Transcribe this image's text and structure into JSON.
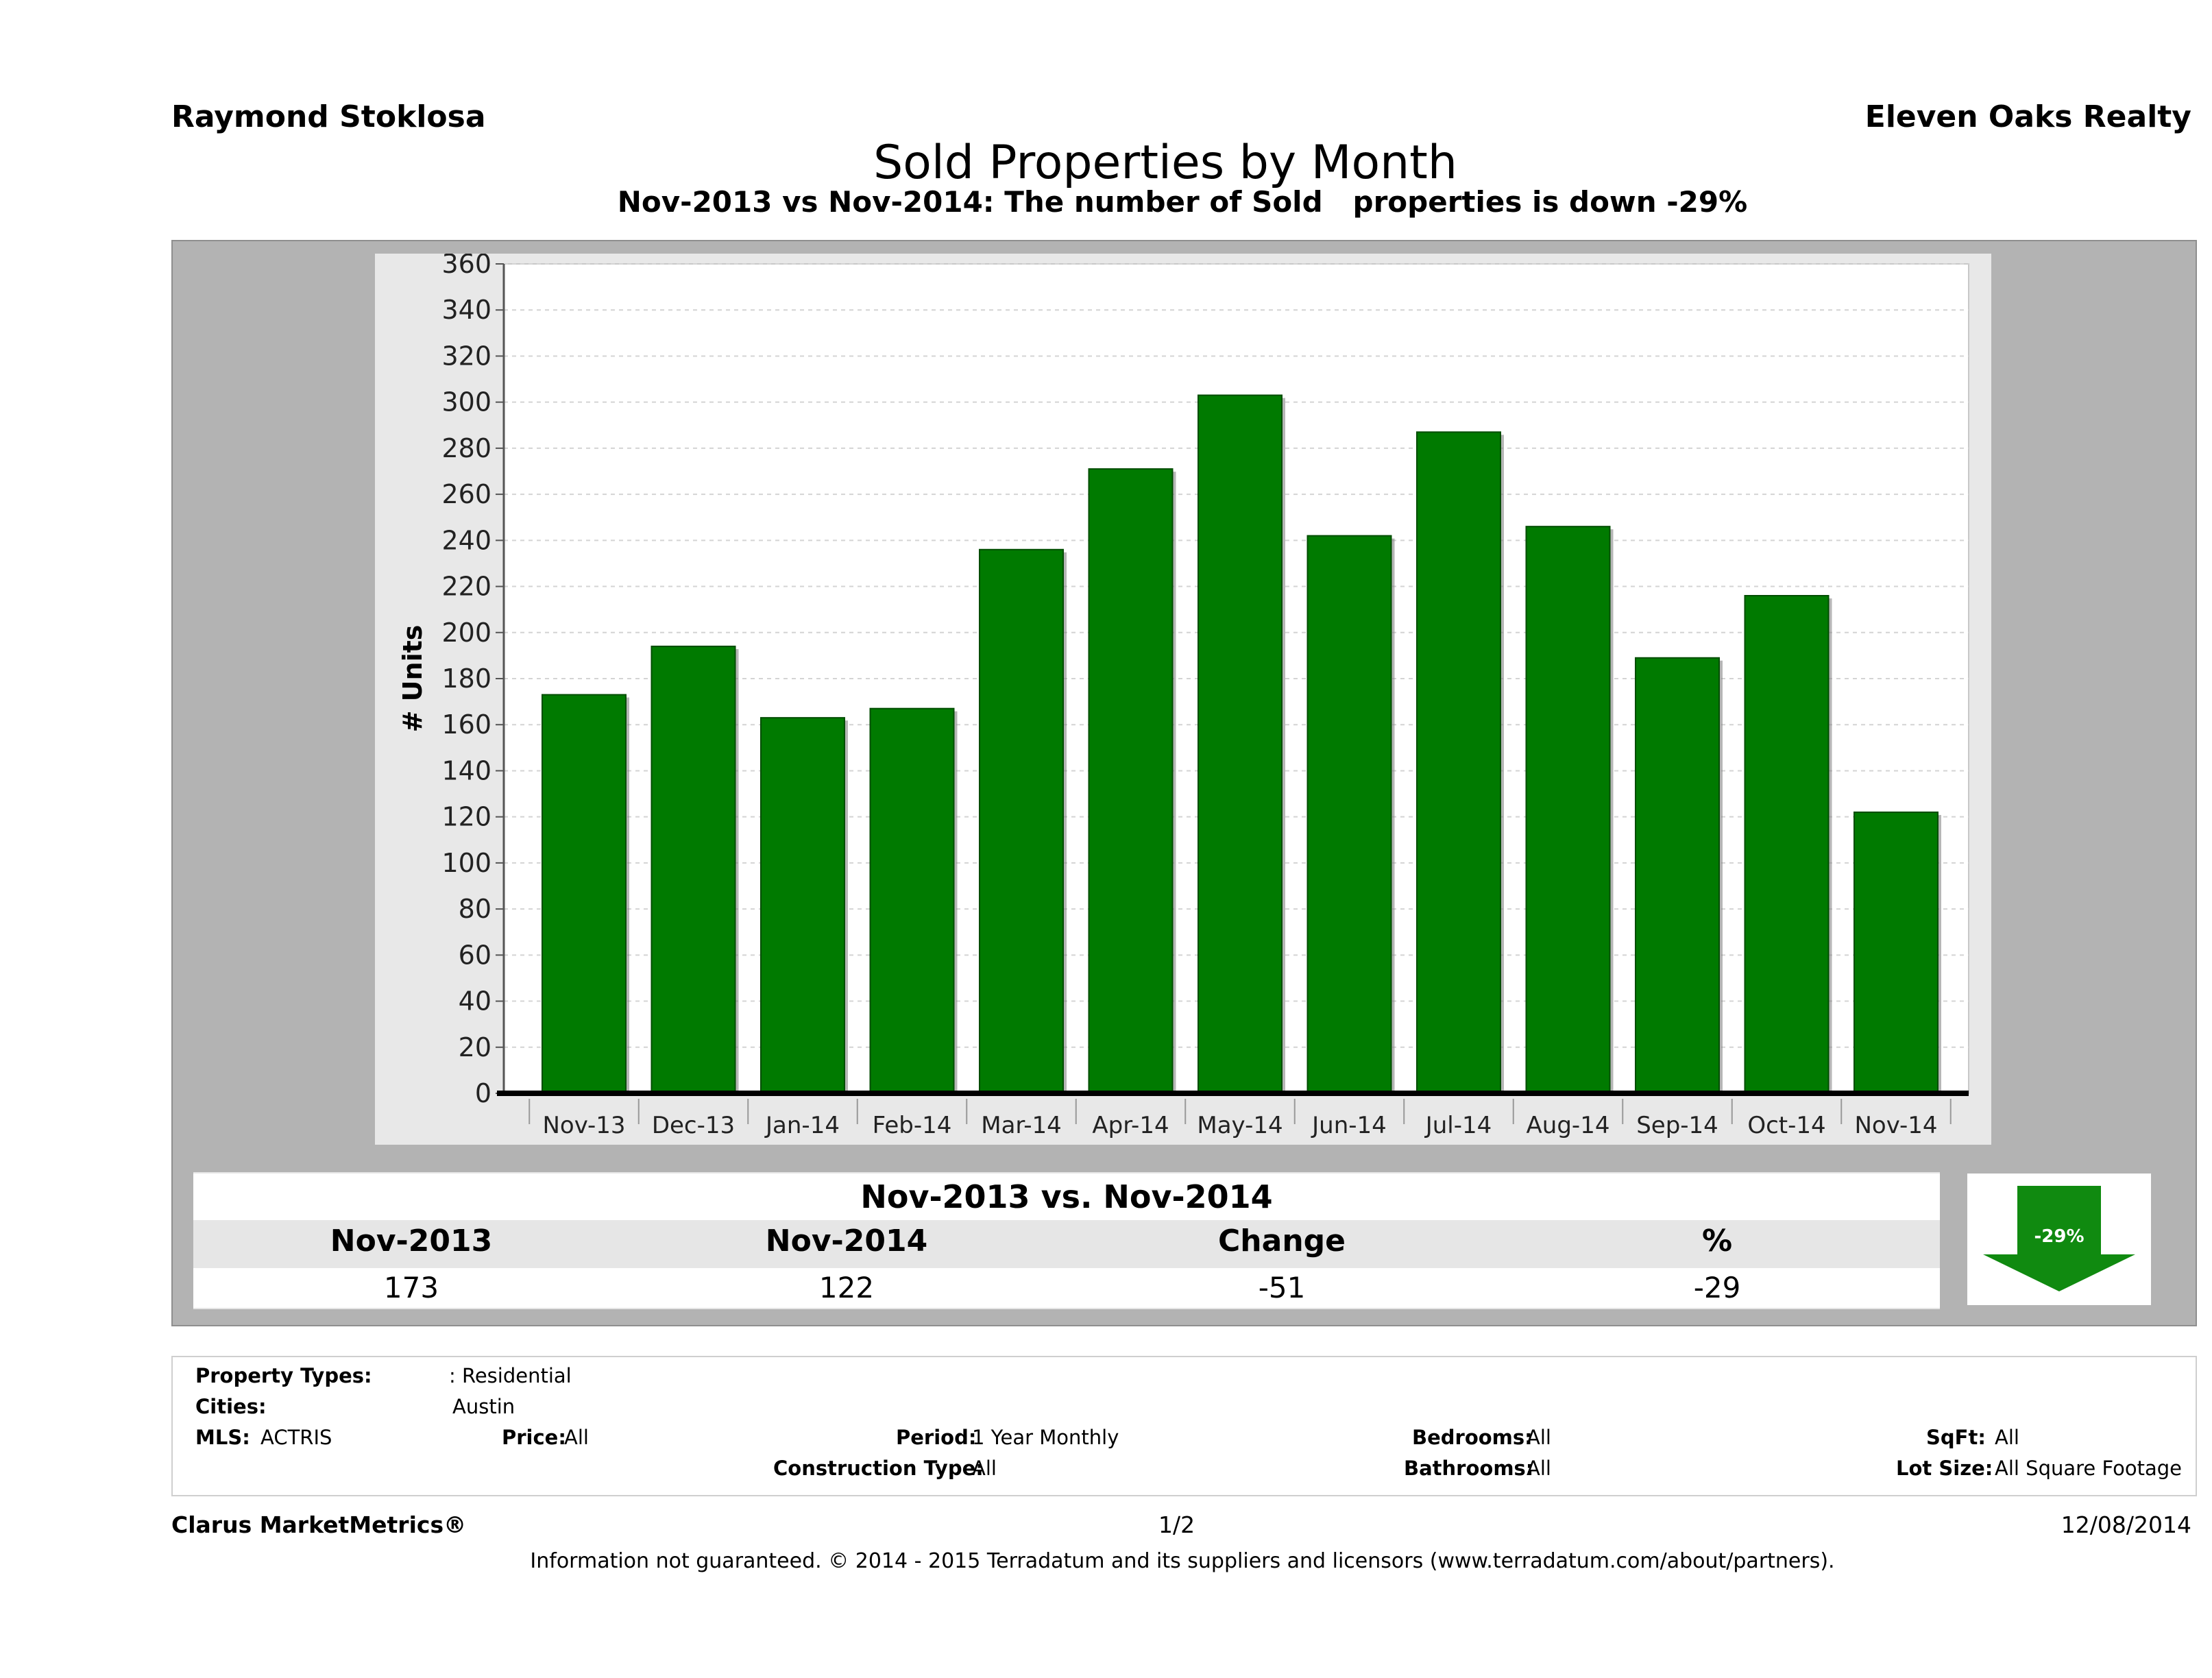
{
  "header": {
    "agent": "Raymond Stoklosa",
    "company": "Eleven Oaks Realty",
    "title": "Sold Properties by Month",
    "subtitle": "Nov-2013 vs Nov-2014: The number of Sold   properties is down -29%"
  },
  "chart_data": {
    "type": "bar",
    "categories": [
      "Nov-13",
      "Dec-13",
      "Jan-14",
      "Feb-14",
      "Mar-14",
      "Apr-14",
      "May-14",
      "Jun-14",
      "Jul-14",
      "Aug-14",
      "Sep-14",
      "Oct-14",
      "Nov-14"
    ],
    "values": [
      173,
      194,
      163,
      167,
      236,
      271,
      303,
      242,
      287,
      246,
      189,
      216,
      122
    ],
    "ylabel": "# Units",
    "ylim": [
      0,
      360
    ],
    "yticks": [
      0,
      20,
      40,
      60,
      80,
      100,
      120,
      140,
      160,
      180,
      200,
      220,
      240,
      260,
      280,
      300,
      320,
      340,
      360
    ],
    "grid": true,
    "bar_color": "#007a00"
  },
  "comparison": {
    "title": "Nov-2013 vs. Nov-2014",
    "headers": [
      "Nov-2013",
      "Nov-2014",
      "Change",
      "%"
    ],
    "values": [
      "173",
      "122",
      "-51",
      "-29"
    ],
    "badge": "-29%",
    "arrow_color": "#108a10"
  },
  "filters": {
    "property_types_label": "Property Types:",
    "property_types_value": ": Residential",
    "cities_label": "Cities:",
    "cities_value": "Austin",
    "mls_label": "MLS:",
    "mls_value": "ACTRIS",
    "price_label": "Price:",
    "price_value": "All",
    "period_label": "Period:",
    "period_value": "1 Year Monthly",
    "bedrooms_label": "Bedrooms:",
    "bedrooms_value": "All",
    "sqft_label": "SqFt:",
    "sqft_value": "All",
    "construction_label": "Construction Type:",
    "construction_value": "All",
    "bathrooms_label": "Bathrooms:",
    "bathrooms_value": "All",
    "lot_label": "Lot Size:",
    "lot_value": "All Square Footage"
  },
  "footer": {
    "brand": "Clarus MarketMetrics®",
    "page": "1/2",
    "date": "12/08/2014",
    "disclaimer": "Information not guaranteed. © 2014 - 2015 Terradatum and its suppliers and licensors (www.terradatum.com/about/partners)."
  }
}
